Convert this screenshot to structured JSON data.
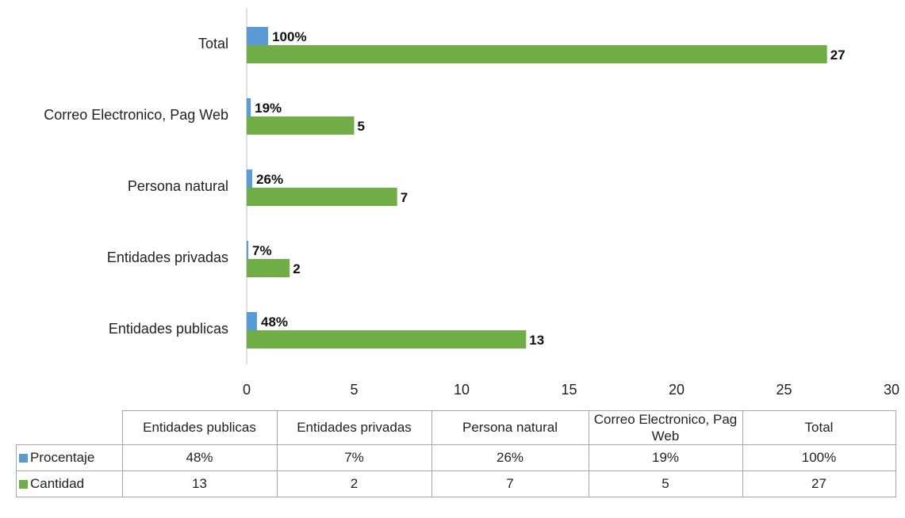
{
  "colors": {
    "procentaje": "#5b9bd5",
    "cantidad": "#70ad47",
    "axis": "#bfbfbf"
  },
  "chart_data": {
    "type": "bar",
    "orientation": "horizontal",
    "categories": [
      "Entidades publicas",
      "Entidades privadas",
      "Persona natural",
      "Correo Electronico, Pag Web",
      "Total"
    ],
    "series": [
      {
        "name": "Procentaje",
        "values": [
          0.48,
          0.07,
          0.26,
          0.19,
          1.0
        ],
        "labels": [
          "48%",
          "7%",
          "26%",
          "19%",
          "100%"
        ]
      },
      {
        "name": "Cantidad",
        "values": [
          13,
          2,
          7,
          5,
          27
        ],
        "labels": [
          "13",
          "2",
          "7",
          "5",
          "27"
        ]
      }
    ],
    "xlim": [
      0,
      30
    ],
    "xticks": [
      "0",
      "5",
      "10",
      "15",
      "20",
      "25",
      "30"
    ],
    "grid": false,
    "legend": "data-table"
  },
  "table": {
    "headers": [
      "Entidades publicas",
      "Entidades privadas",
      "Persona natural",
      "Correo Electronico, Pag Web",
      "Total"
    ],
    "rows": [
      {
        "name": "Procentaje",
        "cells": [
          "48%",
          "7%",
          "26%",
          "19%",
          "100%"
        ]
      },
      {
        "name": "Cantidad",
        "cells": [
          "13",
          "2",
          "7",
          "5",
          "27"
        ]
      }
    ]
  }
}
